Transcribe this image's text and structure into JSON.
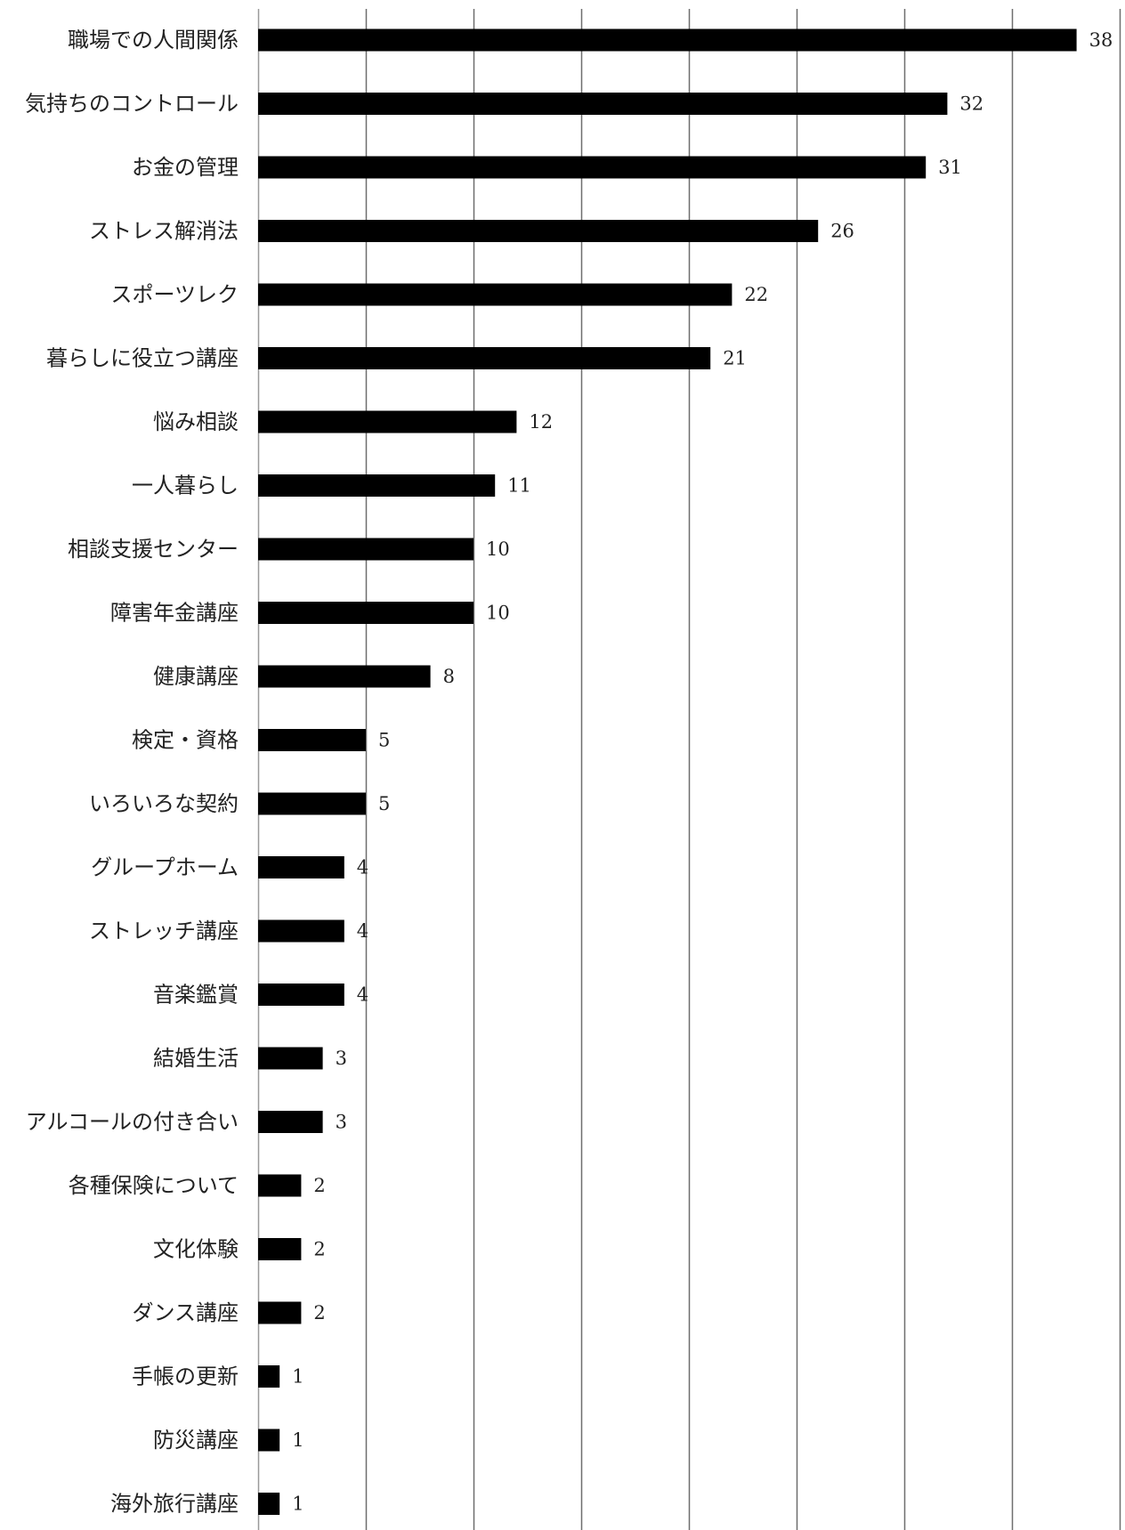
{
  "chart_data": {
    "type": "bar",
    "orientation": "horizontal",
    "title": "",
    "xlabel": "",
    "ylabel": "",
    "xlim": [
      0,
      40
    ],
    "grid": true,
    "legend": "none",
    "bar_color": "#000000",
    "grid_color": "#6e6e6e",
    "categories": [
      "職場での人間関係",
      "気持ちのコントロール",
      "お金の管理",
      "ストレス解消法",
      "スポーツレク",
      "暮らしに役立つ講座",
      "悩み相談",
      "一人暮らし",
      "相談支援センター",
      "障害年金講座",
      "健康講座",
      "検定・資格",
      "いろいろな契約",
      "グループホーム",
      "ストレッチ講座",
      "音楽鑑賞",
      "結婚生活",
      "アルコールの付き合い",
      "各種保険について",
      "文化体験",
      "ダンス講座",
      "手帳の更新",
      "防災講座",
      "海外旅行講座"
    ],
    "values": [
      38,
      32,
      31,
      26,
      22,
      21,
      12,
      11,
      10,
      10,
      8,
      5,
      5,
      4,
      4,
      4,
      3,
      3,
      2,
      2,
      2,
      1,
      1,
      1
    ]
  }
}
